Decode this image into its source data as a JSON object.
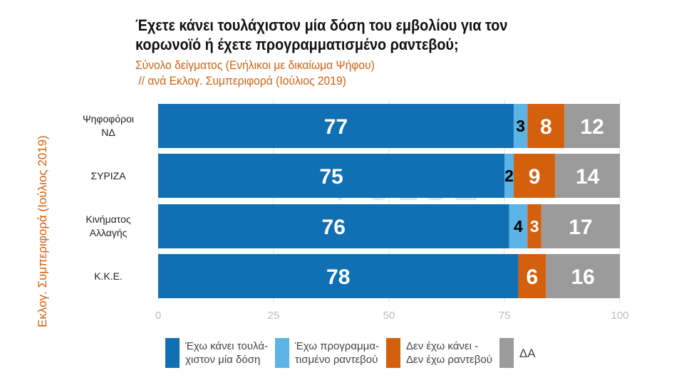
{
  "title": "Έχετε κάνει τουλάχιστον μία δόση του εμβολίου για τον κορωνοϊό ή έχετε προγραμματισμένο ραντεβού;",
  "subtitle_line1": "Σύνολο δείγματος (Ενήλικοι με δικαίωμα Ψήφου)",
  "subtitle_line2": " // ανά Εκλογ. Συμπεριφορά (Ιούλιος 2019)",
  "watermark": "PULSE",
  "chart_data": {
    "type": "bar",
    "orientation": "horizontal",
    "stacked": true,
    "ylabel": "Εκλογ. Συμπεριφορά (Ιούλιος 2019)",
    "categories": [
      "Ψηφοφόροι\nΝΔ",
      "ΣΥΡΙΖΑ",
      "Κινήματος\nΑλλαγής",
      "Κ.Κ.Ε."
    ],
    "xlim": [
      0,
      100
    ],
    "xticks": [
      0,
      25,
      50,
      75,
      100
    ],
    "grid": true,
    "legend_position": "bottom",
    "series": [
      {
        "name": "Έχω κάνει τουλά-\nχιστον μία δόση",
        "color": "#1170b4",
        "label_color": "#ffffff",
        "values": [
          77,
          75,
          76,
          78
        ]
      },
      {
        "name": "Έχω προγραμμα-\nτισμένο ραντεβού",
        "color": "#5cb3e6",
        "label_color": "#000000",
        "values": [
          3,
          2,
          4,
          0
        ]
      },
      {
        "name": "Δεν έχω κάνει -\nΔεν έχω ραντεβού",
        "color": "#d4600e",
        "label_color": "#ffffff",
        "values": [
          8,
          9,
          3,
          6
        ]
      },
      {
        "name": "ΔΑ",
        "color": "#9b9b9b",
        "label_color": "#ffffff",
        "values": [
          12,
          14,
          17,
          16
        ]
      }
    ]
  }
}
